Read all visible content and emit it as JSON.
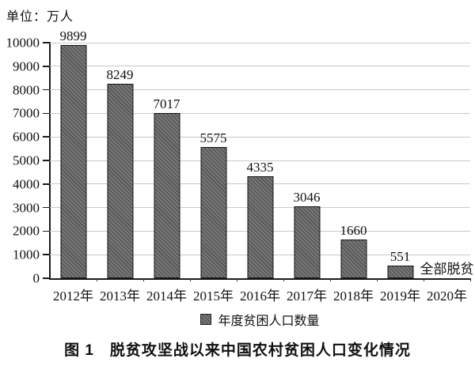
{
  "unit_label": "单位：万人",
  "caption": "图 1　脱贫攻坚战以来中国农村贫困人口变化情况",
  "chart_data": {
    "type": "bar",
    "title": "图 1　脱贫攻坚战以来中国农村贫困人口变化情况",
    "unit": "万人",
    "categories": [
      "2012年",
      "2013年",
      "2014年",
      "2015年",
      "2016年",
      "2017年",
      "2018年",
      "2019年",
      "2020年"
    ],
    "values": [
      9899,
      8249,
      7017,
      5575,
      4335,
      3046,
      1660,
      551,
      null
    ],
    "legend": "年度贫困人口数量",
    "legend_position": "bottom-center",
    "annotation": "全部脱贫",
    "annotation_category": "2020年",
    "ylim": [
      0,
      10000
    ],
    "yticks": [
      0,
      1000,
      2000,
      3000,
      4000,
      5000,
      6000,
      7000,
      8000,
      9000,
      10000
    ],
    "grid": "horizontal",
    "colors": {
      "bar_base": "#787878",
      "bar_hatch": "#555555",
      "bar_border": "#141414",
      "gridline": "#c9c9c9",
      "axis": "#1a1a1a",
      "text": "#111111"
    }
  }
}
